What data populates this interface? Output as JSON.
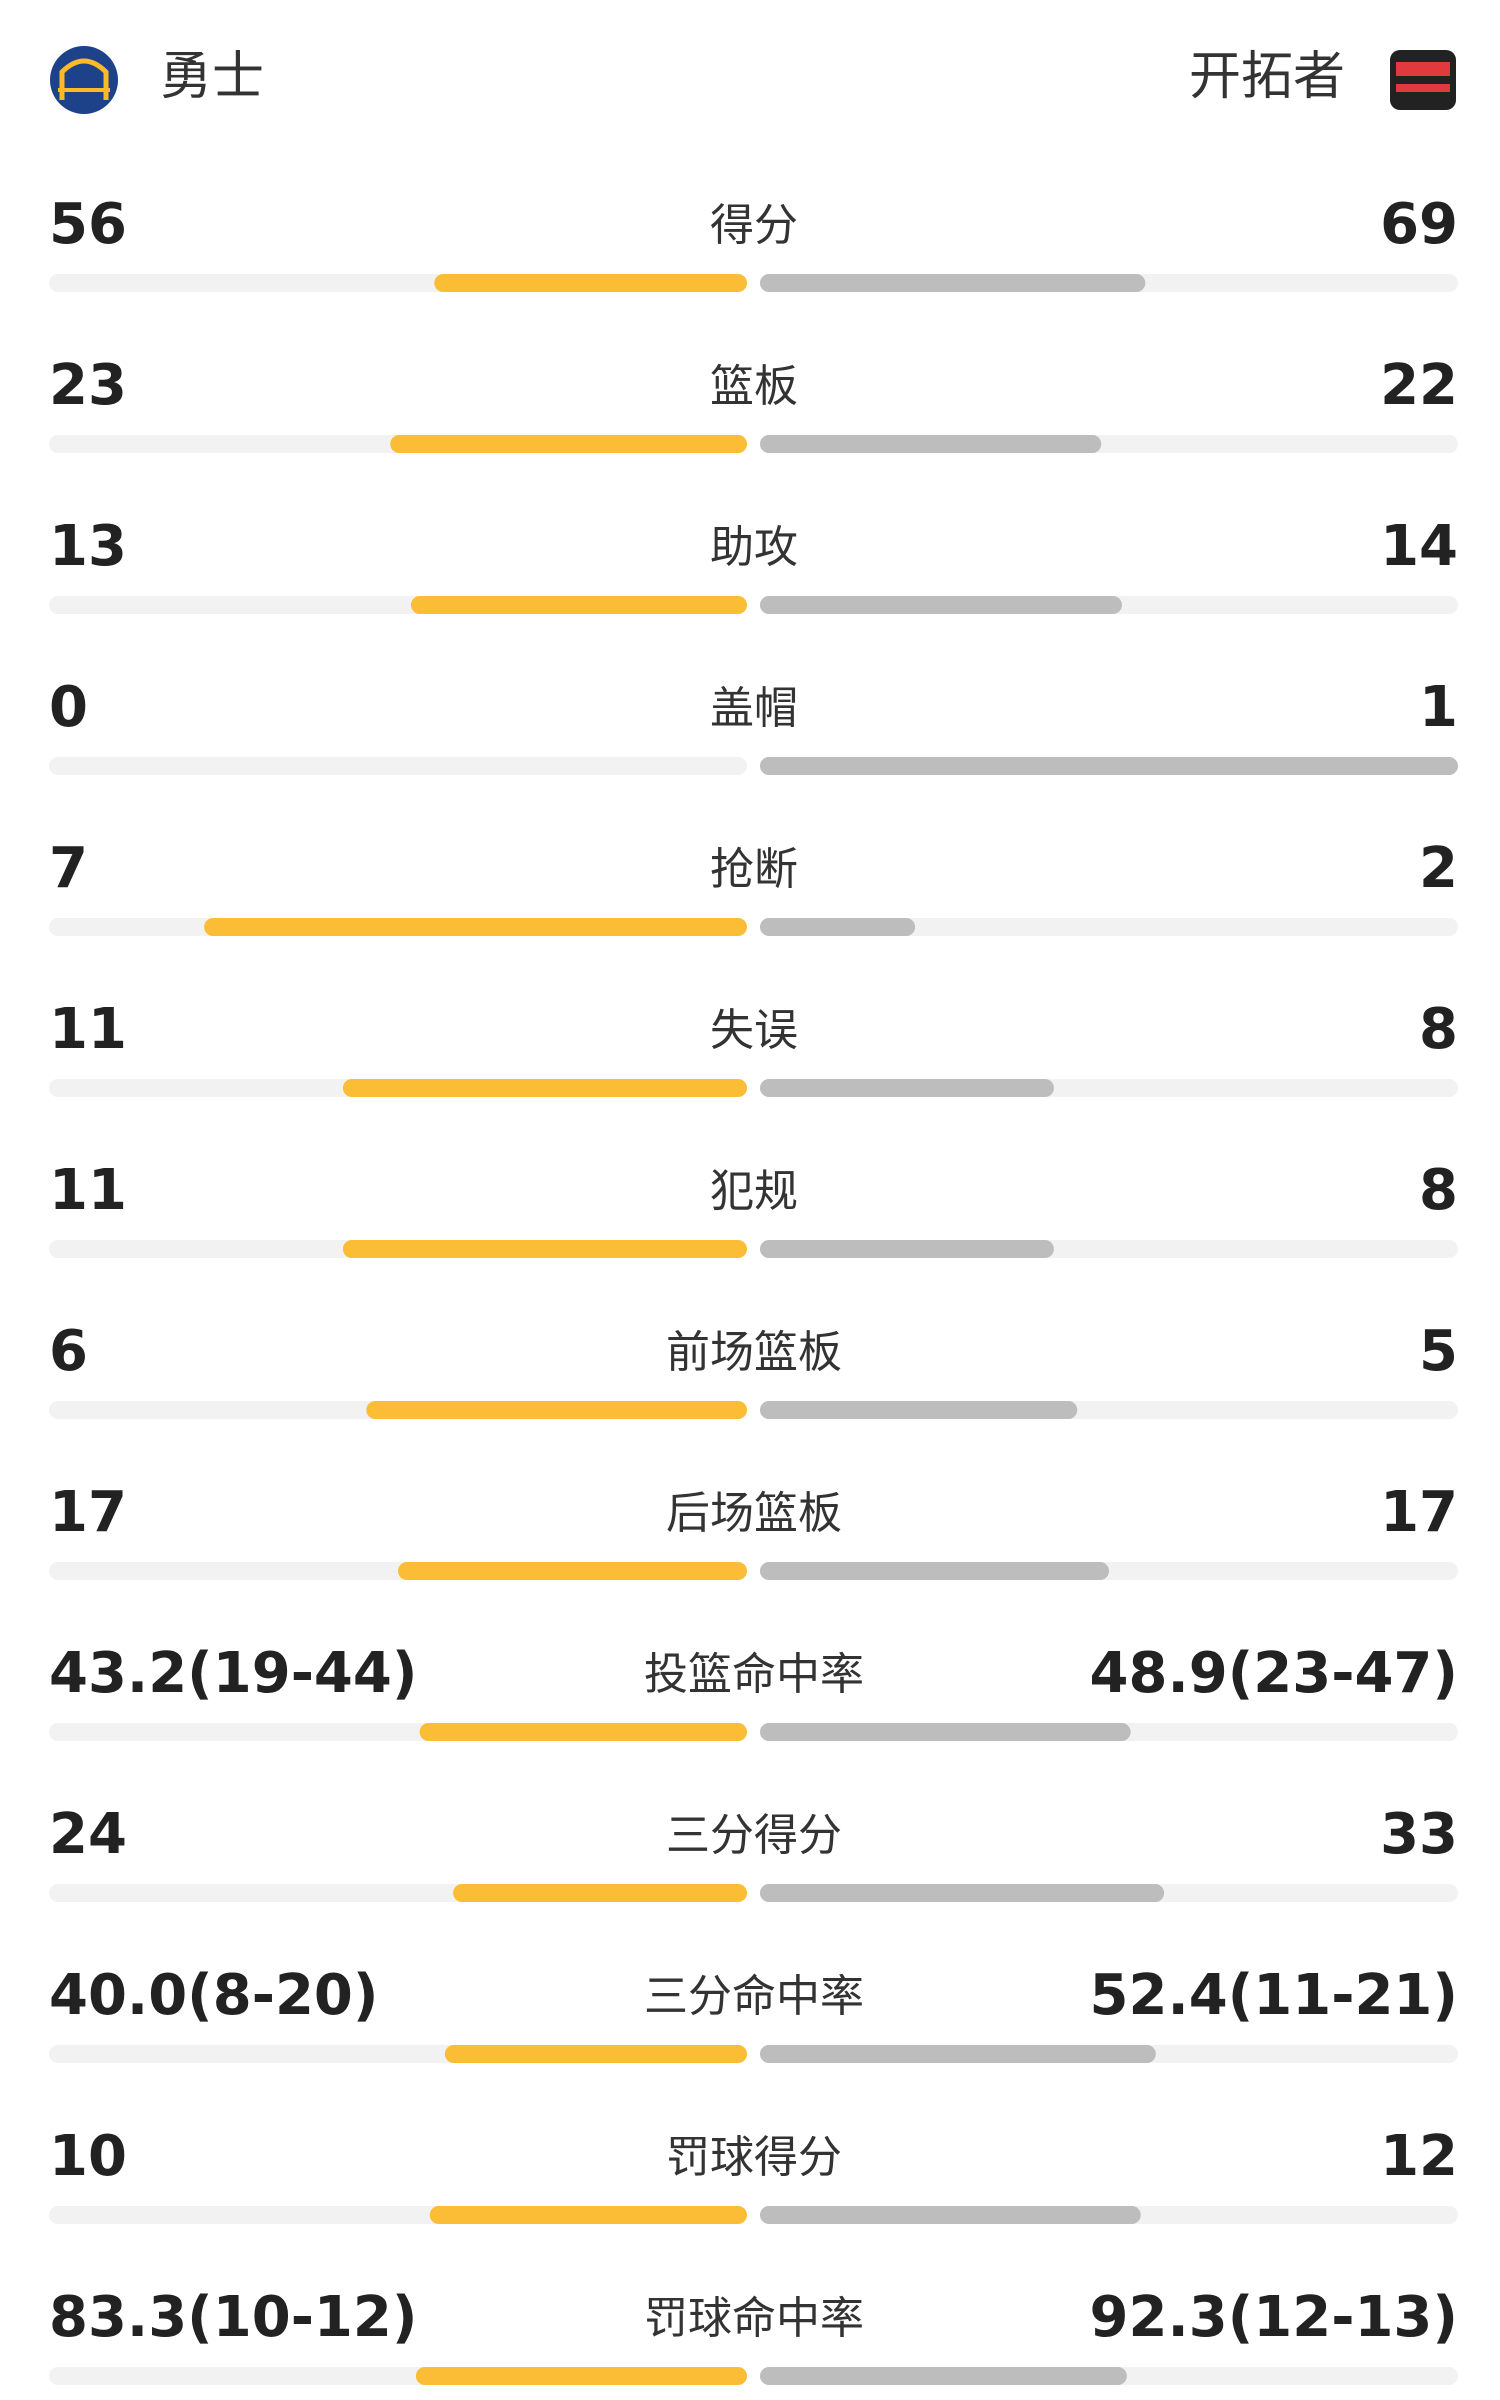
{
  "chart_data": {
    "type": "diverging-bar",
    "categories": [
      "得分",
      "篮板",
      "助攻",
      "盖帽",
      "抢断",
      "失误",
      "犯规",
      "前场篮板",
      "后场篮板",
      "投篮命中率",
      "三分得分",
      "三分命中率",
      "罚球得分",
      "罚球命中率"
    ],
    "series": [
      {
        "name": "勇士",
        "color": "#fbbd36",
        "values": [
          56,
          23,
          13,
          0,
          7,
          11,
          11,
          6,
          17,
          43.2,
          24,
          40.0,
          10,
          83.3
        ],
        "value_labels": [
          null,
          null,
          null,
          null,
          null,
          null,
          null,
          null,
          null,
          "43.2(19-44)",
          null,
          "40.0(8-20)",
          null,
          "83.3(10-12)"
        ]
      },
      {
        "name": "开拓者",
        "color": "#bdbdbd",
        "values": [
          69,
          22,
          14,
          1,
          2,
          8,
          8,
          5,
          17,
          48.9,
          33,
          52.4,
          12,
          92.3
        ],
        "value_labels": [
          null,
          null,
          null,
          null,
          null,
          null,
          null,
          null,
          null,
          "48.9(23-47)",
          null,
          "52.4(11-21)",
          null,
          "92.3(12-13)"
        ]
      }
    ]
  }
}
